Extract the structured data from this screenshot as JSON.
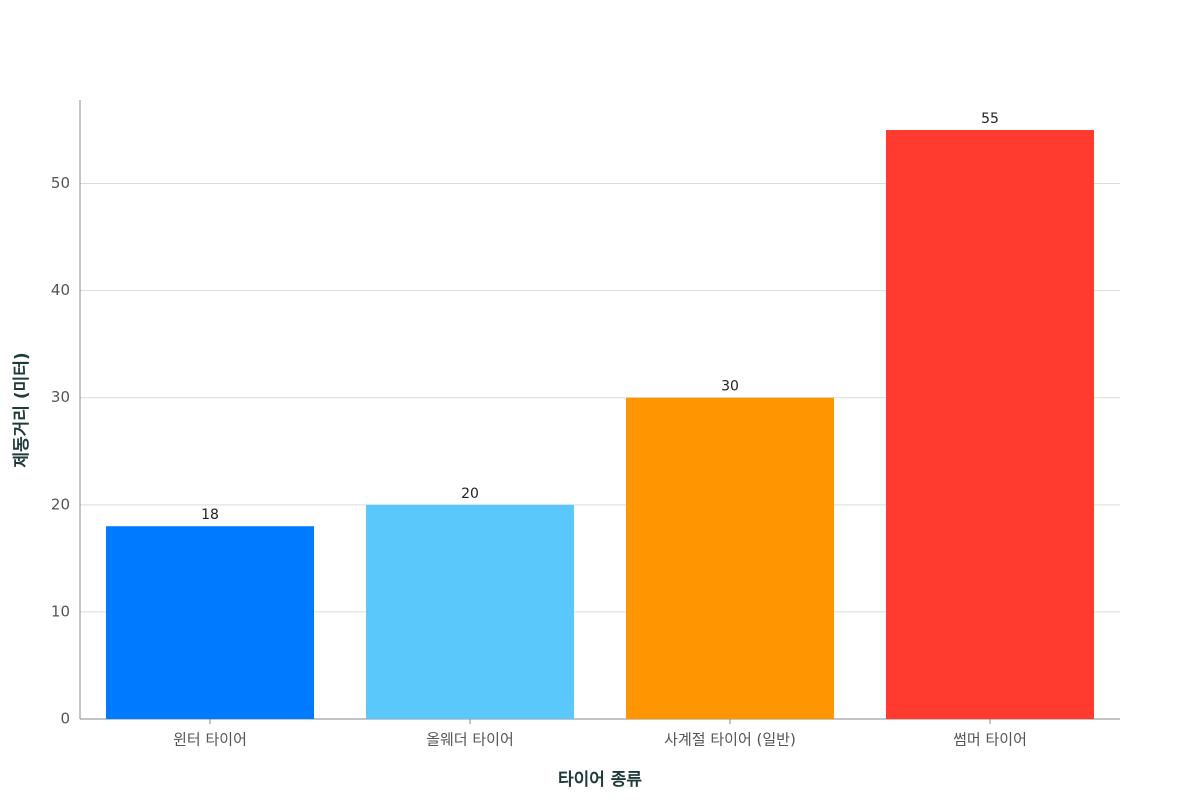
{
  "chart_data": {
    "type": "bar",
    "x_label": "타이어 종류",
    "y_label": "제동거리 (미터)",
    "categories": [
      "윈터 타이어",
      "올웨더 타이어",
      "사계절 타이어 (일반)",
      "썸머 타이어"
    ],
    "values": [
      18,
      20,
      30,
      55
    ],
    "colors": [
      "#007AFF",
      "#5AC8FA",
      "#FF9500",
      "#FF3B30"
    ],
    "ylim": [
      0,
      57.8
    ],
    "yticks": [
      0,
      10,
      20,
      30,
      40,
      50
    ],
    "grid": true,
    "value_labels_shown": true
  }
}
